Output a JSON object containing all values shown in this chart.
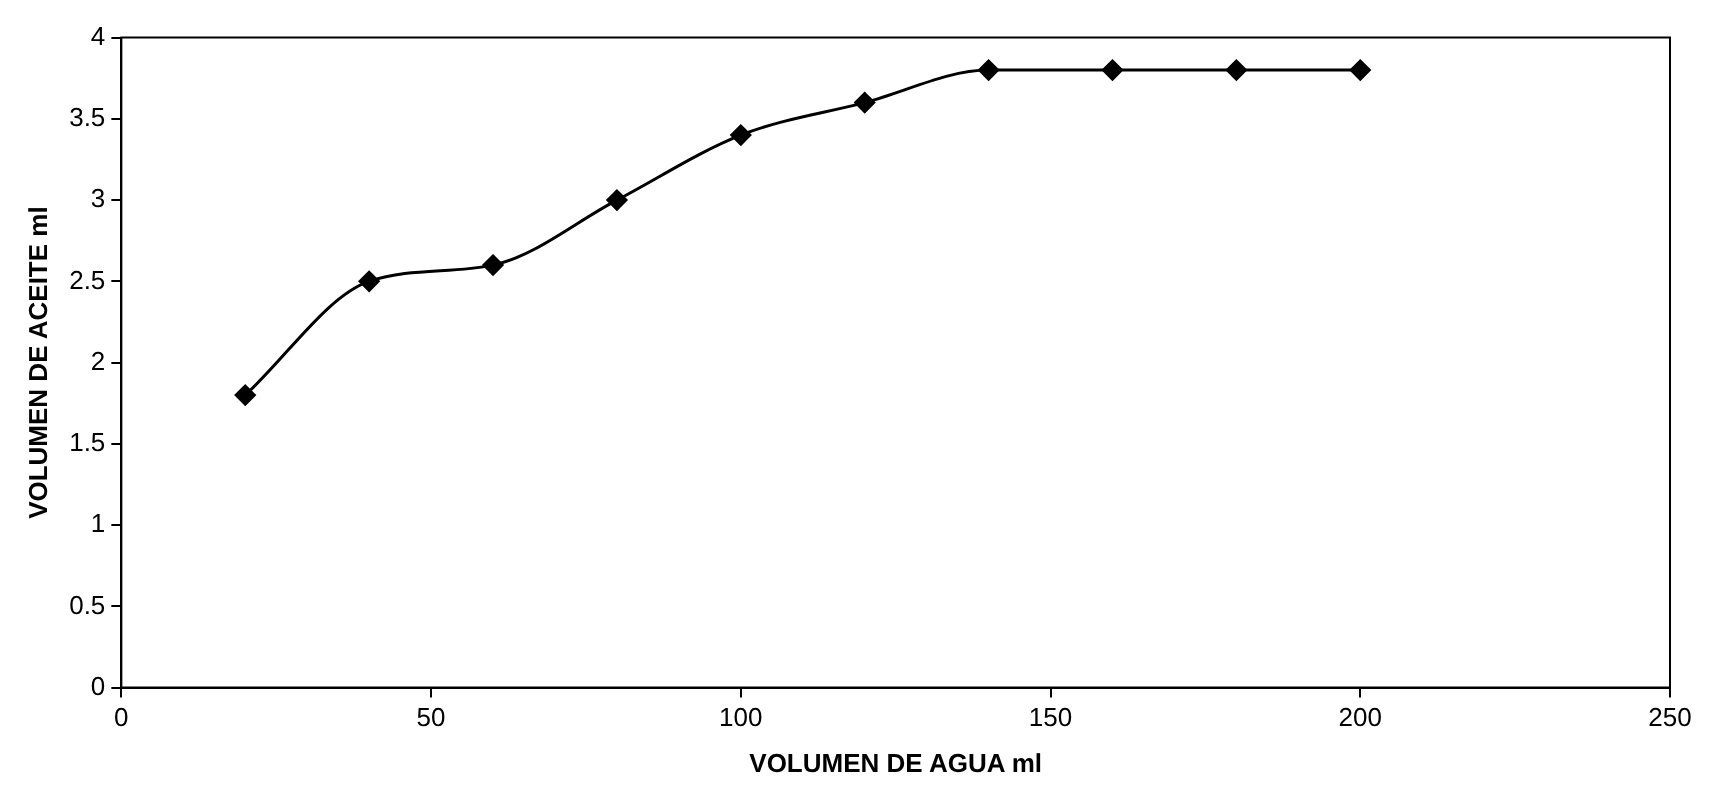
{
  "chart_data": {
    "type": "line",
    "xlabel": "VOLUMEN DE AGUA ml",
    "ylabel": "VOLUMEN DE ACEITE ml",
    "x": [
      20,
      40,
      60,
      80,
      100,
      120,
      140,
      160,
      180,
      200
    ],
    "series": [
      {
        "color": "#000000",
        "values": [
          1.8,
          2.5,
          2.6,
          3.0,
          3.4,
          3.6,
          3.8,
          3.8,
          3.8,
          3.8
        ]
      }
    ],
    "xlim": [
      0,
      250
    ],
    "xticks": [
      0,
      50,
      100,
      150,
      200,
      250
    ],
    "ylim": [
      0,
      4
    ],
    "yticks": [
      0,
      0.5,
      1,
      1.5,
      2,
      2.5,
      3,
      3.5,
      4
    ],
    "grid": false,
    "legend": false,
    "marker": "diamond",
    "line_style": "solid"
  }
}
